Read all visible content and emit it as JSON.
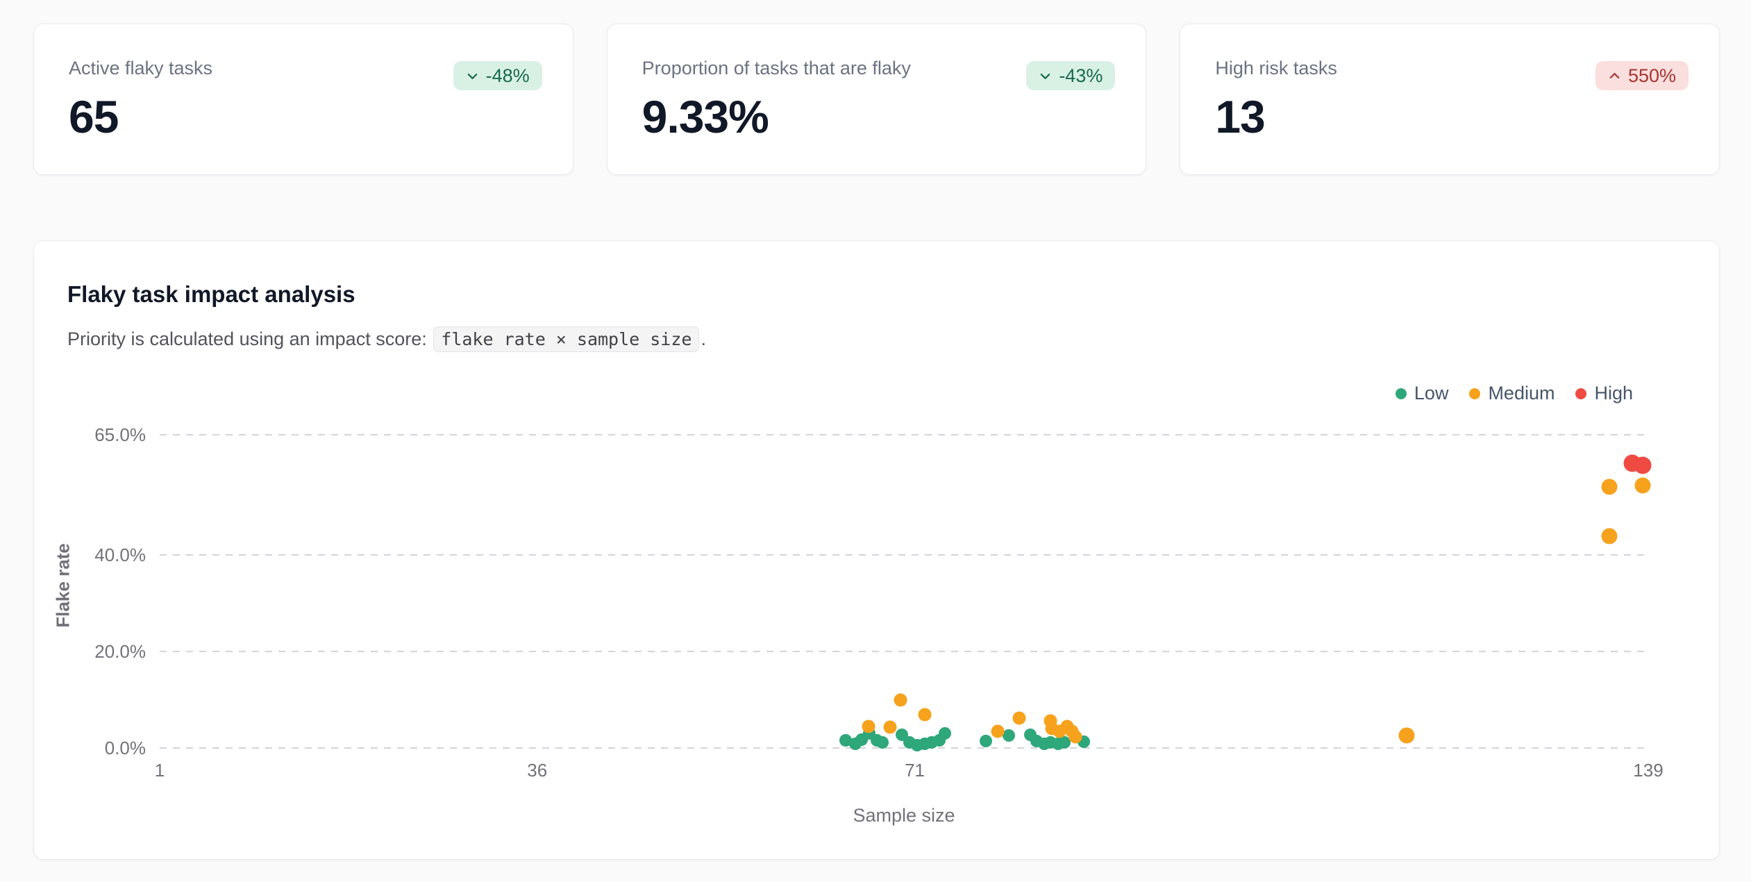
{
  "stat_cards": [
    {
      "label": "Active flaky tasks",
      "value": "65",
      "badge": {
        "text": "-48%",
        "direction": "down",
        "sentiment": "positive"
      }
    },
    {
      "label": "Proportion of tasks that are flaky",
      "value": "9.33%",
      "badge": {
        "text": "-43%",
        "direction": "down",
        "sentiment": "positive"
      }
    },
    {
      "label": "High risk tasks",
      "value": "13",
      "badge": {
        "text": "550%",
        "direction": "up",
        "sentiment": "negative"
      }
    }
  ],
  "chart_card": {
    "title": "Flaky task impact analysis",
    "subtitle_prefix": "Priority is calculated using an impact score: ",
    "formula_code": "flake rate × sample size",
    "subtitle_suffix": "."
  },
  "chart_data": {
    "type": "scatter",
    "xlabel": "Sample size",
    "ylabel": "Flake rate",
    "xlim": [
      1,
      139
    ],
    "ylim": [
      0,
      65
    ],
    "x_ticks": [
      1,
      36,
      71,
      139
    ],
    "y_ticks": [
      {
        "value": 0,
        "label": "0.0%"
      },
      {
        "value": 20,
        "label": "20.0%"
      },
      {
        "value": 40,
        "label": "40.0%"
      },
      {
        "value": 65,
        "label": "65.0%"
      }
    ],
    "grid": "horizontal-dashed",
    "legend_position": "top-right",
    "series": [
      {
        "name": "Low",
        "color": "#2ea77b",
        "points": [
          [
            64.6,
            1.6,
            18
          ],
          [
            65.5,
            0.9,
            18
          ],
          [
            66.1,
            1.7,
            18
          ],
          [
            66.8,
            3.0,
            18
          ],
          [
            67.5,
            1.6,
            18
          ],
          [
            68.0,
            1.2,
            18
          ],
          [
            69.8,
            2.7,
            18
          ],
          [
            70.5,
            1.2,
            18
          ],
          [
            71.2,
            0.6,
            18
          ],
          [
            71.9,
            0.9,
            18
          ],
          [
            72.6,
            1.2,
            18
          ],
          [
            73.3,
            1.6,
            18
          ],
          [
            73.8,
            3.0,
            18
          ],
          [
            77.6,
            1.4,
            18
          ],
          [
            79.7,
            2.6,
            18
          ],
          [
            81.7,
            2.7,
            18
          ],
          [
            82.3,
            1.4,
            18
          ],
          [
            83.0,
            0.9,
            18
          ],
          [
            83.6,
            1.2,
            18
          ],
          [
            84.3,
            0.9,
            18
          ],
          [
            84.9,
            1.2,
            18
          ],
          [
            86.7,
            1.3,
            18
          ]
        ]
      },
      {
        "name": "Medium",
        "color": "#f6a21c",
        "points": [
          [
            66.7,
            4.5,
            19
          ],
          [
            68.7,
            4.3,
            19
          ],
          [
            69.7,
            9.9,
            19
          ],
          [
            71.9,
            6.9,
            19
          ],
          [
            78.7,
            3.5,
            19
          ],
          [
            80.7,
            6.2,
            19
          ],
          [
            83.6,
            5.6,
            19
          ],
          [
            83.7,
            4.0,
            19
          ],
          [
            84.4,
            3.5,
            19
          ],
          [
            85.1,
            4.5,
            19
          ],
          [
            85.6,
            3.5,
            19
          ],
          [
            85.9,
            2.3,
            19
          ],
          [
            116.6,
            2.6,
            23
          ],
          [
            135.4,
            44.0,
            23
          ],
          [
            135.4,
            54.2,
            23
          ],
          [
            138.5,
            54.5,
            23
          ]
        ]
      },
      {
        "name": "High",
        "color": "#ef4b42",
        "points": [
          [
            137.5,
            59.1,
            25
          ],
          [
            138.5,
            58.7,
            25
          ]
        ]
      }
    ]
  },
  "colors": {
    "page_background": "#fafafa",
    "card_background": "#ffffff",
    "card_border": "#ebebf0",
    "positive_badge_bg": "#d9f1e5",
    "positive_badge_text": "#17694e",
    "negative_badge_bg": "#fbdede",
    "negative_badge_text": "#a53530",
    "gridline": "#d4d4da",
    "tick_text": "#71717a",
    "legend_text": "#475569",
    "low": "#2ea77b",
    "medium": "#f6a21c",
    "high": "#ef4b42"
  }
}
